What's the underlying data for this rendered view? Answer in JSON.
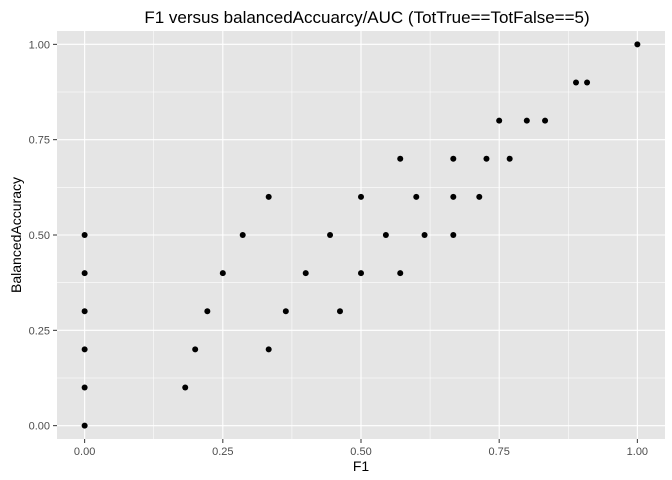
{
  "chart_data": {
    "type": "scatter",
    "title": "F1 versus balancedAccuarcy/AUC (TotTrue==TotFalse==5)",
    "xlabel": "F1",
    "ylabel": "BalancedAccuracy",
    "xlim": [
      -0.05,
      1.05
    ],
    "ylim": [
      -0.035,
      1.035
    ],
    "x_ticks": [
      0,
      0.25,
      0.5,
      0.75,
      1
    ],
    "x_tick_labels": [
      "0.00",
      "0.25",
      "0.50",
      "0.75",
      "1.00"
    ],
    "y_ticks": [
      0,
      0.25,
      0.5,
      0.75,
      1
    ],
    "y_tick_labels": [
      "0.00",
      "0.25",
      "0.50",
      "0.75",
      "1.00"
    ],
    "grid": true,
    "colors": {
      "panel": "#e5e5e5",
      "grid": "#ffffff",
      "point": "#000000"
    },
    "points": [
      {
        "x": 0,
        "y": 0
      },
      {
        "x": 0,
        "y": 0.1
      },
      {
        "x": 0,
        "y": 0.2
      },
      {
        "x": 0,
        "y": 0.3
      },
      {
        "x": 0,
        "y": 0.4
      },
      {
        "x": 0,
        "y": 0.5
      },
      {
        "x": 0.182,
        "y": 0.1
      },
      {
        "x": 0.2,
        "y": 0.2
      },
      {
        "x": 0.222,
        "y": 0.3
      },
      {
        "x": 0.25,
        "y": 0.4
      },
      {
        "x": 0.286,
        "y": 0.5
      },
      {
        "x": 0.333,
        "y": 0.2
      },
      {
        "x": 0.333,
        "y": 0.6
      },
      {
        "x": 0.364,
        "y": 0.3
      },
      {
        "x": 0.4,
        "y": 0.4
      },
      {
        "x": 0.444,
        "y": 0.5
      },
      {
        "x": 0.462,
        "y": 0.3
      },
      {
        "x": 0.5,
        "y": 0.4
      },
      {
        "x": 0.5,
        "y": 0.6
      },
      {
        "x": 0.545,
        "y": 0.5
      },
      {
        "x": 0.571,
        "y": 0.4
      },
      {
        "x": 0.571,
        "y": 0.7
      },
      {
        "x": 0.6,
        "y": 0.6
      },
      {
        "x": 0.615,
        "y": 0.5
      },
      {
        "x": 0.667,
        "y": 0.5
      },
      {
        "x": 0.667,
        "y": 0.6
      },
      {
        "x": 0.667,
        "y": 0.7
      },
      {
        "x": 0.714,
        "y": 0.6
      },
      {
        "x": 0.727,
        "y": 0.7
      },
      {
        "x": 0.75,
        "y": 0.8
      },
      {
        "x": 0.769,
        "y": 0.7
      },
      {
        "x": 0.8,
        "y": 0.8
      },
      {
        "x": 0.833,
        "y": 0.8
      },
      {
        "x": 0.889,
        "y": 0.9
      },
      {
        "x": 0.909,
        "y": 0.9
      },
      {
        "x": 1,
        "y": 1
      }
    ]
  }
}
